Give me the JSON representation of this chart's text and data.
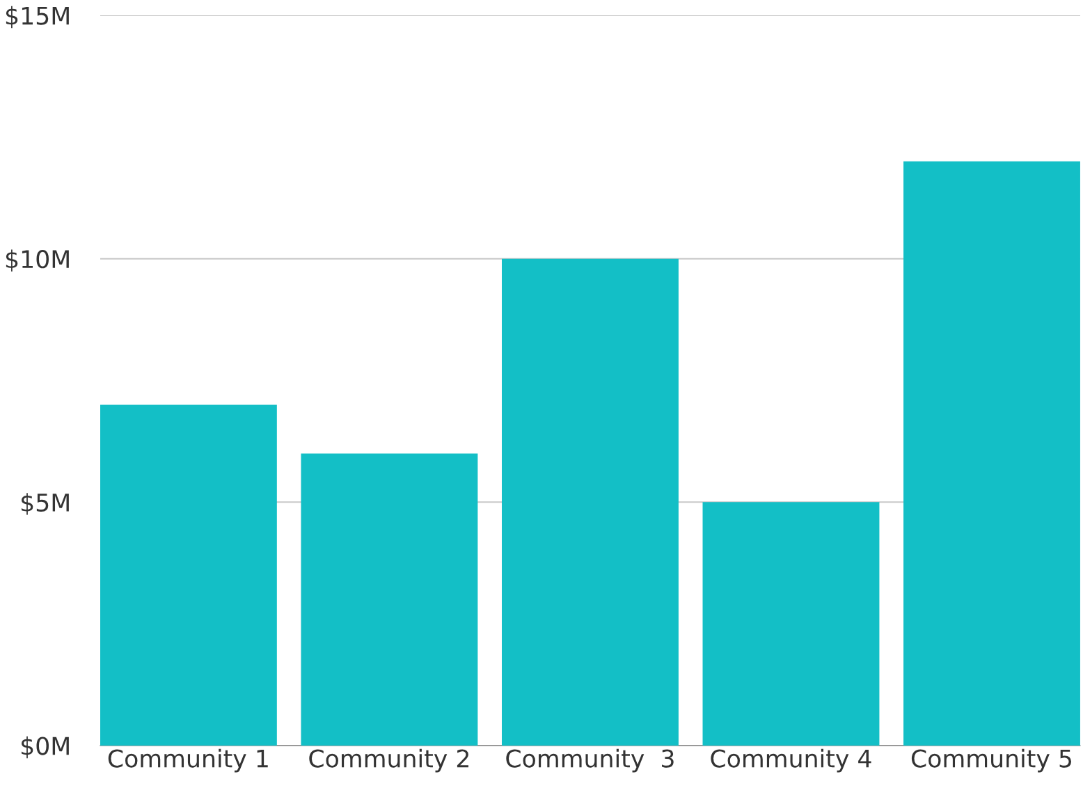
{
  "chart_data": {
    "type": "bar",
    "categories": [
      "Community 1",
      "Community 2",
      "Community  3",
      "Community 4",
      "Community 5"
    ],
    "values": [
      7,
      6,
      10,
      5,
      12
    ],
    "color": "#13bfc6",
    "ylim": [
      0,
      15
    ],
    "yticks": [
      {
        "value": 0,
        "label": "$0M"
      },
      {
        "value": 5,
        "label": "$5M"
      },
      {
        "value": 10,
        "label": "$10M"
      },
      {
        "value": 15,
        "label": "$15M"
      }
    ],
    "grid": "y"
  }
}
